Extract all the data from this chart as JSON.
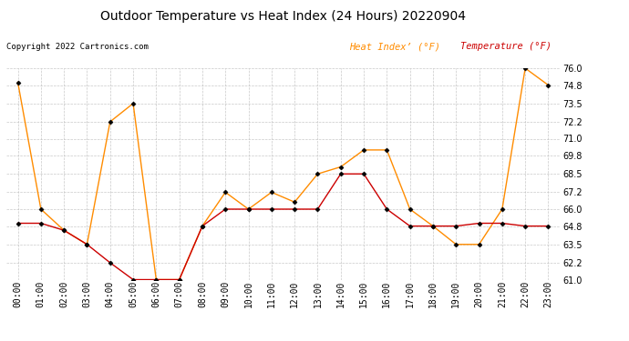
{
  "title": "Outdoor Temperature vs Heat Index (24 Hours) 20220904",
  "copyright": "Copyright 2022 Cartronics.com",
  "legend_heat": "Heat Index’ (°F)",
  "legend_temp": "Temperature (°F)",
  "x_labels": [
    "00:00",
    "01:00",
    "02:00",
    "03:00",
    "04:00",
    "05:00",
    "06:00",
    "07:00",
    "08:00",
    "09:00",
    "10:00",
    "11:00",
    "12:00",
    "13:00",
    "14:00",
    "15:00",
    "16:00",
    "17:00",
    "18:00",
    "19:00",
    "20:00",
    "21:00",
    "22:00",
    "23:00"
  ],
  "temperature": [
    65.0,
    65.0,
    64.5,
    63.5,
    62.2,
    61.0,
    61.0,
    61.0,
    64.8,
    66.0,
    66.0,
    66.0,
    66.0,
    66.0,
    68.5,
    68.5,
    66.0,
    64.8,
    64.8,
    64.8,
    65.0,
    65.0,
    64.8,
    64.8
  ],
  "heat_index": [
    75.0,
    66.0,
    64.5,
    63.5,
    72.2,
    73.5,
    61.0,
    61.0,
    64.8,
    67.2,
    66.0,
    67.2,
    66.5,
    68.5,
    69.0,
    70.2,
    70.2,
    66.0,
    64.8,
    63.5,
    63.5,
    66.0,
    76.0,
    74.8
  ],
  "ylim_min": 61.0,
  "ylim_max": 76.0,
  "yticks": [
    61.0,
    62.2,
    63.5,
    64.8,
    66.0,
    67.2,
    68.5,
    69.8,
    71.0,
    72.2,
    73.5,
    74.8,
    76.0
  ],
  "temp_color": "#cc0000",
  "heat_color": "#ff8c00",
  "marker_color": "#000000",
  "bg_color": "#ffffff",
  "grid_color": "#bbbbbb",
  "title_fontsize": 10,
  "copyright_fontsize": 6.5,
  "legend_fontsize": 7.5,
  "axis_fontsize": 7
}
